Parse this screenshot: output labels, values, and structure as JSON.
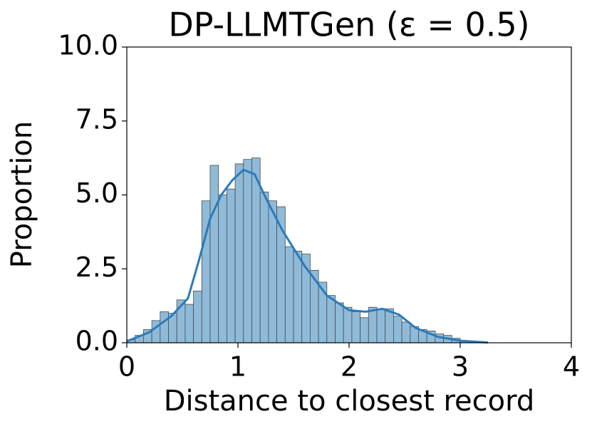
{
  "chart_data": {
    "type": "histogram",
    "title": "DP-LLMTGen (ε = 0.5)",
    "x_label": "Distance to closest record",
    "y_label": "Proportion",
    "bins": [
      0,
      0.075,
      0.15,
      0.225,
      0.3,
      0.375,
      0.45,
      0.525,
      0.6,
      0.675,
      0.75,
      0.825,
      0.9,
      0.975,
      1.05,
      1.125,
      1.2,
      1.275,
      1.35,
      1.425,
      1.5,
      1.575,
      1.65,
      1.725,
      1.8,
      1.875,
      1.95,
      2.025,
      2.1,
      2.175,
      2.25,
      2.325,
      2.4,
      2.475,
      2.55,
      2.625,
      2.7,
      2.775,
      2.85,
      2.925,
      3.0,
      3.075
    ],
    "values": [
      0.1,
      0.25,
      0.45,
      0.75,
      1.05,
      1.0,
      1.45,
      1.3,
      1.75,
      4.8,
      6.0,
      5.0,
      5.2,
      6.05,
      6.2,
      6.25,
      5.1,
      4.8,
      4.6,
      3.25,
      3.1,
      3.0,
      2.45,
      2.05,
      1.6,
      1.35,
      1.2,
      1.05,
      0.85,
      1.2,
      1.15,
      1.15,
      0.9,
      0.7,
      0.55,
      0.45,
      0.4,
      0.3,
      0.25,
      0.15,
      0.05
    ],
    "color": "#8fbbd9",
    "edge_color": "#4a4a4a",
    "kde": {
      "color": "#2b7bba",
      "x": [
        0,
        0.2,
        0.4,
        0.55,
        0.65,
        0.75,
        0.85,
        0.95,
        1.05,
        1.15,
        1.25,
        1.4,
        1.6,
        1.8,
        2.0,
        2.15,
        2.3,
        2.45,
        2.6,
        2.8,
        3.0,
        3.25
      ],
      "values": [
        0.05,
        0.35,
        0.9,
        1.5,
        2.8,
        4.2,
        5.0,
        5.5,
        5.85,
        5.7,
        4.9,
        3.8,
        2.6,
        1.6,
        1.1,
        1.05,
        1.15,
        0.95,
        0.5,
        0.2,
        0.07,
        0.01
      ]
    },
    "xlim": [
      0,
      4
    ],
    "xticks": [
      0,
      1,
      2,
      3,
      4
    ],
    "ylim": [
      0,
      10
    ],
    "yticks": [
      {
        "value": 0,
        "label": "0.0"
      },
      {
        "value": 2.5,
        "label": "2.5"
      },
      {
        "value": 5,
        "label": "5.0"
      },
      {
        "value": 7.5,
        "label": "7.5"
      },
      {
        "value": 10,
        "label": "10.0"
      }
    ]
  }
}
